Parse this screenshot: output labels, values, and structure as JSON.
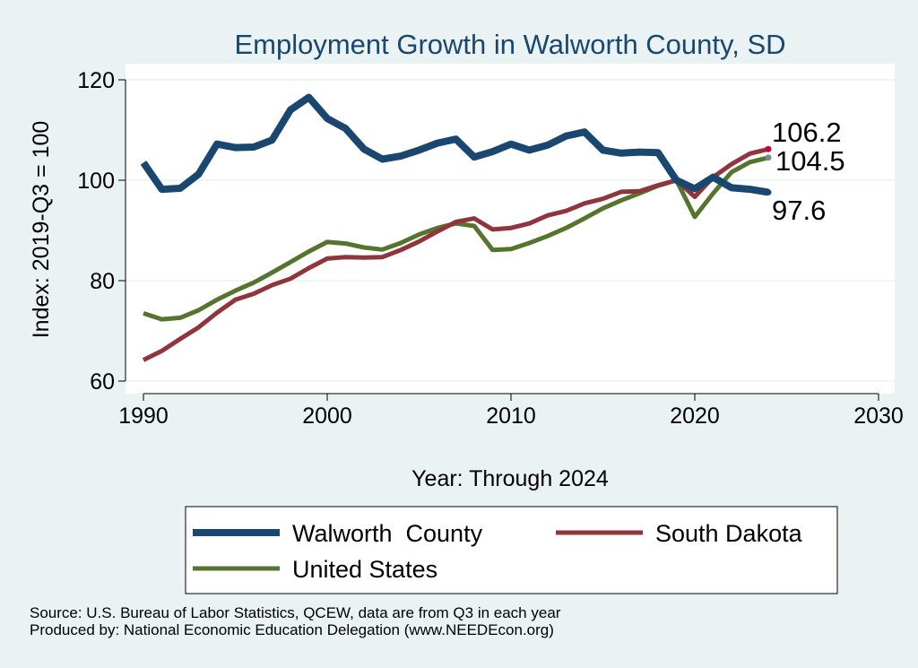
{
  "chart_data": {
    "type": "line",
    "title": "Employment Growth in Walworth County, SD",
    "xlabel": "Year: Through 2024",
    "ylabel": "Index: 2019-Q3 = 100",
    "xlim": [
      1990,
      2030
    ],
    "ylim": [
      58,
      122
    ],
    "x_ticks": [
      1990,
      2000,
      2010,
      2020,
      2030
    ],
    "y_ticks": [
      60,
      80,
      100,
      120
    ],
    "grid": true,
    "legend_position": "bottom",
    "x": [
      1990,
      1991,
      1992,
      1993,
      1994,
      1995,
      1996,
      1997,
      1998,
      1999,
      2000,
      2001,
      2002,
      2003,
      2004,
      2005,
      2006,
      2007,
      2008,
      2009,
      2010,
      2011,
      2012,
      2013,
      2014,
      2015,
      2016,
      2017,
      2018,
      2019,
      2020,
      2021,
      2022,
      2023,
      2024
    ],
    "series": [
      {
        "name": "Walworth  County",
        "color": "#1a476f",
        "values": [
          103.5,
          98.2,
          98.4,
          101.2,
          107.2,
          106.5,
          106.6,
          108.0,
          114.0,
          116.5,
          112.3,
          110.3,
          106.2,
          104.2,
          104.8,
          106.0,
          107.4,
          108.2,
          104.6,
          105.7,
          107.2,
          106.0,
          107.0,
          108.8,
          109.6,
          106.0,
          105.4,
          105.6,
          105.5,
          100.0,
          98.3,
          100.6,
          98.5,
          98.2,
          97.6
        ],
        "end_label": "97.6"
      },
      {
        "name": "South Dakota",
        "color": "#90353b",
        "values": [
          64.2,
          66.0,
          68.4,
          70.7,
          73.6,
          76.2,
          77.4,
          79.1,
          80.4,
          82.5,
          84.4,
          84.7,
          84.6,
          84.7,
          86.1,
          87.8,
          89.8,
          91.7,
          92.4,
          90.2,
          90.5,
          91.4,
          93.0,
          93.9,
          95.4,
          96.3,
          97.7,
          97.8,
          99.0,
          100.0,
          96.7,
          100.6,
          103.2,
          105.3,
          106.2
        ],
        "end_label": "106.2"
      },
      {
        "name": "United States",
        "color": "#55752f",
        "values": [
          73.5,
          72.3,
          72.6,
          74.1,
          76.2,
          78.0,
          79.6,
          81.6,
          83.7,
          85.8,
          87.7,
          87.4,
          86.6,
          86.2,
          87.5,
          89.2,
          90.5,
          91.4,
          90.9,
          86.1,
          86.3,
          87.5,
          88.9,
          90.5,
          92.4,
          94.4,
          96.0,
          97.4,
          98.9,
          100.0,
          92.7,
          97.4,
          101.6,
          103.6,
          104.5
        ],
        "end_label": "104.5"
      }
    ]
  },
  "source_line": "Source: U.S. Bureau of Labor Statistics, QCEW, data are from Q3 in each year",
  "producer_line": "Produced by: National Economic Education Delegation (www.NEEDEcon.org)"
}
